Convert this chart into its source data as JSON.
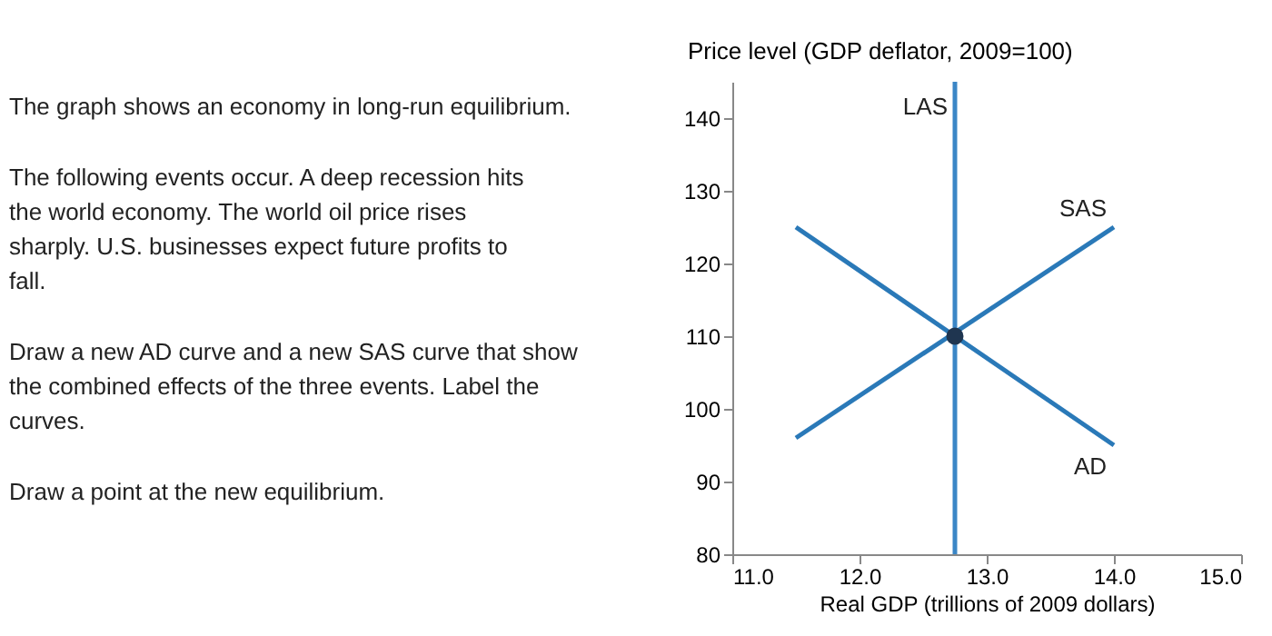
{
  "chart_data": {
    "type": "line",
    "xlabel": "Real GDP (trillions of 2009 dollars)",
    "ylabel": "Price level (GDP deflator, 2009=100)",
    "annotations": [
      "The graph shows an economy in long-run equilibrium.",
      "The following events occur. A deep recession hits the world economy. The world oil price rises sharply. U.S. businesses expect future profits to fall.",
      "Draw a new AD curve and a new SAS curve that show the combined effects of the three events. Label the curves.",
      "Draw a point at the new equilibrium."
    ],
    "xlim": [
      11,
      15
    ],
    "ylim": [
      80,
      145
    ],
    "xticks": [
      {
        "value": 11,
        "label": "11.0"
      },
      {
        "value": 12,
        "label": "12.0"
      },
      {
        "value": 13,
        "label": "13.0"
      },
      {
        "value": 14,
        "label": "14.0"
      },
      {
        "value": 15,
        "label": "15.0"
      }
    ],
    "yticks": [
      80,
      90,
      100,
      110,
      120,
      130,
      140
    ],
    "grid": false,
    "line_style": "solid",
    "series": [
      {
        "name": "LAS",
        "color": "#3b86c6",
        "x": [
          12.75,
          12.75
        ],
        "values": [
          80,
          145
        ]
      },
      {
        "name": "SAS",
        "color": "#2a79b8",
        "x": [
          11.5,
          14
        ],
        "values": [
          96,
          125
        ]
      },
      {
        "name": "AD",
        "color": "#2a79b8",
        "x": [
          11.5,
          14
        ],
        "values": [
          125,
          95
        ]
      },
      {
        "type": "scatter",
        "marker": "circle",
        "color": "#1f3550",
        "x": [
          12.75
        ],
        "values": [
          110
        ]
      }
    ]
  }
}
